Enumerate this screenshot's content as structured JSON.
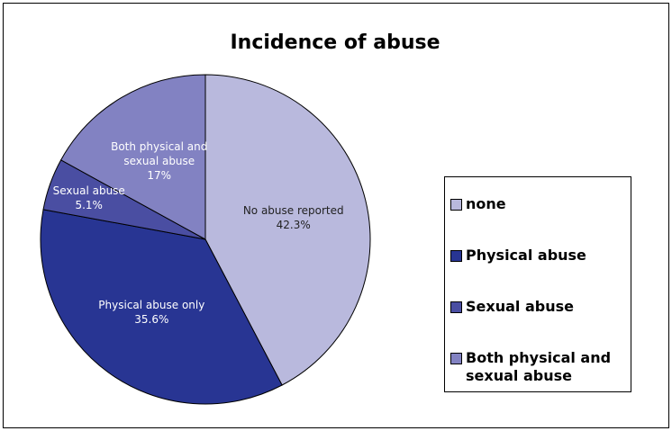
{
  "chart_data": {
    "type": "pie",
    "title": "Incidence of abuse",
    "categories": [
      "none",
      "Physical abuse",
      "Sexual abuse",
      "Both physical and sexual abuse"
    ],
    "labels": [
      "No abuse reported",
      "Physical abuse only",
      "Sexual abuse",
      "Both physical and sexual abuse"
    ],
    "values": [
      42.3,
      35.6,
      5.1,
      17
    ],
    "value_labels": [
      "42.3%",
      "35.6%",
      "5.1%",
      "17%"
    ],
    "colors": [
      "#b9b9dd",
      "#283593",
      "#4a4ea2",
      "#8282c2"
    ]
  }
}
